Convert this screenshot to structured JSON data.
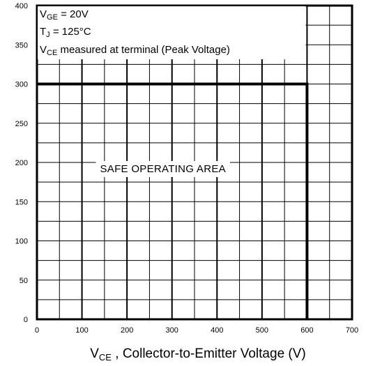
{
  "chart_data": {
    "type": "area",
    "title": "",
    "xlim": [
      0,
      700
    ],
    "ylim": [
      0,
      400
    ],
    "xticks": [
      0,
      100,
      200,
      300,
      400,
      500,
      600,
      700
    ],
    "yticks": [
      0,
      50,
      100,
      150,
      200,
      250,
      300,
      350,
      400
    ],
    "xlabel": {
      "main": "V",
      "sub": "CE",
      "rest": " , Collector-to-Emitter Voltage (V)"
    },
    "ylabel": "",
    "grid": true,
    "x_minor_step": 50,
    "y_minor_step": 25,
    "series": [
      {
        "x": [
          0,
          600,
          600
        ],
        "y": [
          300,
          300,
          0
        ]
      }
    ],
    "annotations": {
      "conditions": [
        {
          "main": "V",
          "sub": "GE",
          "rest": " = 20V"
        },
        {
          "main": "T",
          "sub": "J",
          "rest": "   = 125°C"
        },
        {
          "main": "V",
          "sub": "CE",
          "rest": " measured at terminal (Peak Voltage)"
        }
      ],
      "region_label": "SAFE OPERATING AREA"
    }
  }
}
